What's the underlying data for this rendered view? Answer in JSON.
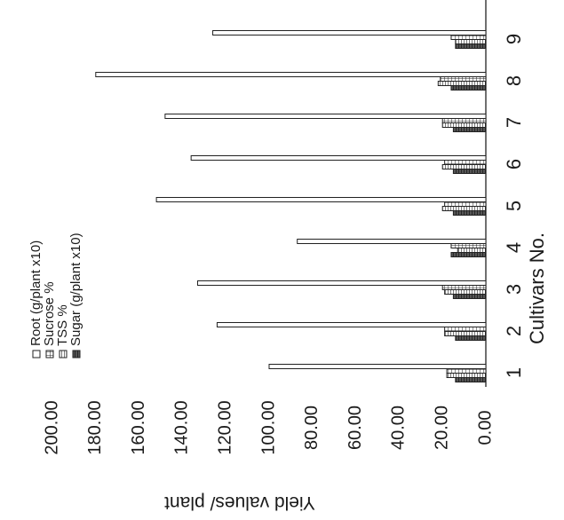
{
  "chart_data": {
    "type": "bar",
    "orientation": "horizontal",
    "rotated_on_page": true,
    "title": "",
    "xlabel": "Cultivars No.",
    "ylabel": "Yield values/ plant",
    "categories": [
      "1",
      "2",
      "3",
      "4",
      "5",
      "6",
      "7",
      "8",
      "9"
    ],
    "ylim": [
      0,
      200
    ],
    "yticks": [
      "0.00",
      "20.00",
      "40.00",
      "60.00",
      "80.00",
      "100.00",
      "120.00",
      "140.00",
      "160.00",
      "180.00",
      "200.00"
    ],
    "grid": false,
    "legend_position": "top",
    "series": [
      {
        "name": "Root (g/plant x10)",
        "pattern": "open",
        "values": [
          100,
          124,
          133,
          87,
          152,
          136,
          148,
          180,
          126
        ]
      },
      {
        "name": "Sucrose %",
        "pattern": "grid",
        "values": [
          18,
          19,
          20,
          16,
          19,
          19,
          20,
          21,
          16
        ]
      },
      {
        "name": "TSS %",
        "pattern": "hatch",
        "values": [
          18,
          19,
          19,
          13,
          20,
          20,
          20,
          22,
          14
        ]
      },
      {
        "name": "Sugar (g/plant x10)",
        "pattern": "dense",
        "values": [
          14,
          14,
          15,
          16,
          15,
          15,
          15,
          16,
          14
        ]
      }
    ]
  }
}
